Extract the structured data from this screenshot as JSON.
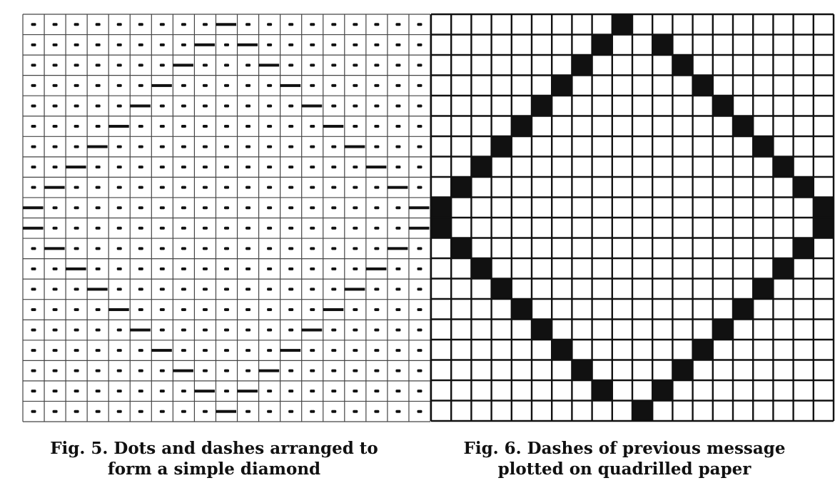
{
  "figure5": {
    "caption_line1": "Fig. 5.  Dots and dashes arranged to",
    "caption_line2": "form a simple diamond"
  },
  "figure6": {
    "caption_line1": "Fig. 6.  Dashes of previous message",
    "caption_line2": "plotted on quadrilled paper"
  },
  "diamond": {
    "top_column": 9,
    "bottom_column": 9,
    "left_rows": [
      9,
      10
    ],
    "right_rows": [
      9,
      10
    ]
  },
  "colors": {
    "ink": "#111111",
    "paper": "#ffffff"
  }
}
